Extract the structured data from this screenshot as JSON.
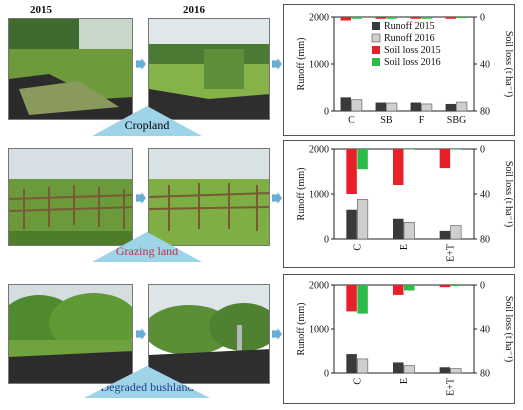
{
  "years": [
    "2015",
    "2016"
  ],
  "panels": [
    {
      "land_label": "Cropland",
      "label_color": "#111111"
    },
    {
      "land_label": "Grazing land",
      "label_color": "#c0304a"
    },
    {
      "land_label": "Degraded bushland",
      "label_color": "#1f3f8f"
    }
  ],
  "colors": {
    "runoff_2015": "#3a3a3a",
    "runoff_2016": "#cfcfcf",
    "soil_2015": "#e8202a",
    "soil_2016": "#2dbb4a",
    "arrow": "#6aaed6",
    "label_bg": "#9fd3e8"
  },
  "chart_data": [
    {
      "type": "bar",
      "categories": [
        "C",
        "SB",
        "F",
        "SBG"
      ],
      "ylabel": "Runoff (mm)",
      "y2label": "Soil loss (t ha⁻¹)",
      "ylim": [
        0,
        2000
      ],
      "yticks": [
        "0",
        "1000",
        "2000"
      ],
      "y2lim": [
        0,
        80
      ],
      "y2ticks": [
        "0",
        "40",
        "80"
      ],
      "legend": [
        "Runoff 2015",
        "Runoff 2016",
        "Soil loss 2015",
        "Soil loss 2016"
      ],
      "series": [
        {
          "name": "Runoff 2015",
          "axis": "left",
          "values": [
            290,
            180,
            180,
            150
          ]
        },
        {
          "name": "Runoff 2016",
          "axis": "left",
          "values": [
            240,
            170,
            150,
            190
          ]
        },
        {
          "name": "Soil loss 2015",
          "axis": "right",
          "values": [
            3.0,
            1.5,
            1.5,
            1.5
          ]
        },
        {
          "name": "Soil loss 2016",
          "axis": "right",
          "values": [
            1.5,
            1.5,
            1.5,
            1.0
          ]
        }
      ]
    },
    {
      "type": "bar",
      "categories": [
        "C",
        "E",
        "E+T"
      ],
      "ylabel": "Runoff (mm)",
      "y2label": "Soil loss (t ha⁻¹)",
      "ylim": [
        0,
        2000
      ],
      "yticks": [
        "0",
        "1000",
        "2000"
      ],
      "y2lim": [
        0,
        80
      ],
      "y2ticks": [
        "0",
        "40",
        "80"
      ],
      "series": [
        {
          "name": "Runoff 2015",
          "axis": "left",
          "values": [
            650,
            450,
            180
          ]
        },
        {
          "name": "Runoff 2016",
          "axis": "left",
          "values": [
            880,
            370,
            300
          ]
        },
        {
          "name": "Soil loss 2015",
          "axis": "right",
          "values": [
            40,
            32,
            17
          ]
        },
        {
          "name": "Soil loss 2016",
          "axis": "right",
          "values": [
            18,
            0.5,
            0.5
          ]
        }
      ]
    },
    {
      "type": "bar",
      "categories": [
        "C",
        "E",
        "E+T"
      ],
      "ylabel": "Runoff (mm)",
      "y2label": "Soil loss (t ha⁻¹)",
      "ylim": [
        0,
        2000
      ],
      "yticks": [
        "0",
        "1000",
        "2000"
      ],
      "y2lim": [
        0,
        80
      ],
      "y2ticks": [
        "0",
        "40",
        "80"
      ],
      "series": [
        {
          "name": "Runoff 2015",
          "axis": "left",
          "values": [
            430,
            240,
            130
          ]
        },
        {
          "name": "Runoff 2016",
          "axis": "left",
          "values": [
            320,
            170,
            100
          ]
        },
        {
          "name": "Soil loss 2015",
          "axis": "right",
          "values": [
            24,
            9,
            2
          ]
        },
        {
          "name": "Soil loss 2016",
          "axis": "right",
          "values": [
            26,
            5,
            1
          ]
        }
      ]
    }
  ]
}
